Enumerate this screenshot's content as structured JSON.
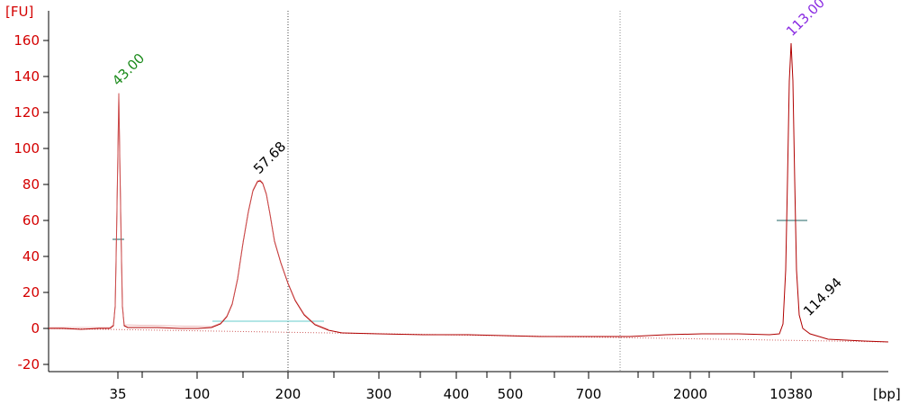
{
  "chart_data": {
    "type": "line",
    "y_unit": "[FU]",
    "x_unit": "[bp]",
    "ylim": [
      -20,
      170
    ],
    "y_ticks": [
      -20,
      0,
      20,
      40,
      60,
      80,
      100,
      120,
      140,
      160
    ],
    "x_tick_labels": [
      "35",
      "100",
      "200",
      "300",
      "400",
      "500",
      "700",
      "2000",
      "10380"
    ],
    "grid": false,
    "peak_labels": [
      {
        "text": "43.00",
        "color": "#1a8a1a"
      },
      {
        "text": "57.68",
        "color": "#000000"
      },
      {
        "text": "113.00",
        "color": "#8a2be2"
      },
      {
        "text": "114.94",
        "color": "#000000"
      }
    ],
    "series_color": "#b00000"
  }
}
